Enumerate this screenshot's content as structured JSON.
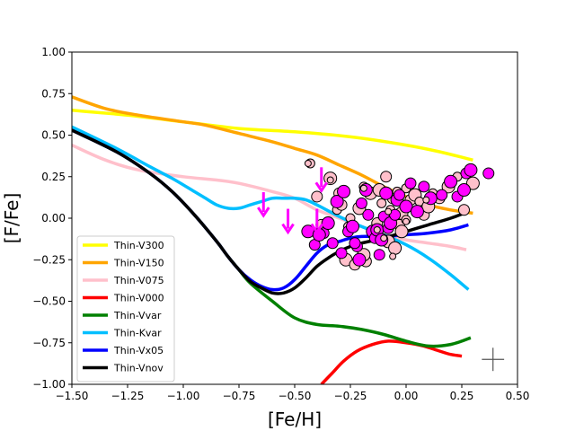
{
  "chart_data": {
    "type": "line",
    "xlabel": "[Fe/H]",
    "ylabel": "[F/Fe]",
    "xlim": [
      -1.5,
      0.5
    ],
    "ylim": [
      -1.0,
      1.0
    ],
    "xticks": [
      -1.5,
      -1.25,
      -1.0,
      -0.75,
      -0.5,
      -0.25,
      0.0,
      0.25,
      0.5
    ],
    "xtick_labels": [
      "−1.50",
      "−1.25",
      "−1.00",
      "−0.75",
      "−0.50",
      "−0.25",
      "0.00",
      "0.25",
      "0.50"
    ],
    "yticks": [
      -1.0,
      -0.75,
      -0.5,
      -0.25,
      0.0,
      0.25,
      0.5,
      0.75,
      1.0
    ],
    "ytick_labels": [
      "−1.00",
      "−0.75",
      "−0.50",
      "−0.25",
      "0.00",
      "0.25",
      "0.50",
      "0.75",
      "1.00"
    ],
    "legend_position": "lower-left",
    "series": [
      {
        "name": "Thin-V300",
        "color": "#ffff00",
        "x": [
          -1.5,
          -1.25,
          -1.0,
          -0.75,
          -0.5,
          -0.25,
          0.0,
          0.15,
          0.3
        ],
        "y": [
          0.65,
          0.62,
          0.58,
          0.54,
          0.52,
          0.49,
          0.44,
          0.4,
          0.35
        ]
      },
      {
        "name": "Thin-V150",
        "color": "#ffa500",
        "x": [
          -1.5,
          -1.35,
          -1.2,
          -1.0,
          -0.9,
          -0.75,
          -0.6,
          -0.5,
          -0.4,
          -0.3,
          -0.2,
          -0.1,
          0.0,
          0.1,
          0.2,
          0.3
        ],
        "y": [
          0.73,
          0.66,
          0.62,
          0.58,
          0.56,
          0.51,
          0.46,
          0.42,
          0.38,
          0.32,
          0.26,
          0.19,
          0.13,
          0.08,
          0.05,
          0.03
        ]
      },
      {
        "name": "Thin-V075",
        "color": "#ffc0cb",
        "x": [
          -1.5,
          -1.35,
          -1.2,
          -1.0,
          -0.85,
          -0.75,
          -0.6,
          -0.5,
          -0.4,
          -0.3,
          -0.2,
          -0.1,
          0.0,
          0.1,
          0.2,
          0.27
        ],
        "y": [
          0.44,
          0.35,
          0.29,
          0.25,
          0.23,
          0.21,
          0.16,
          0.12,
          0.05,
          0.0,
          -0.05,
          -0.1,
          -0.13,
          -0.15,
          -0.17,
          -0.19
        ]
      },
      {
        "name": "Thin-V000",
        "color": "#ff0000",
        "x": [
          -0.38,
          -0.33,
          -0.28,
          -0.22,
          -0.15,
          -0.08,
          0.0,
          0.08,
          0.15,
          0.2,
          0.25
        ],
        "y": [
          -1.0,
          -0.93,
          -0.86,
          -0.8,
          -0.76,
          -0.74,
          -0.75,
          -0.77,
          -0.8,
          -0.82,
          -0.83
        ]
      },
      {
        "name": "Thin-Vvar",
        "color": "#008000",
        "x": [
          -1.5,
          -1.3,
          -1.15,
          -1.05,
          -0.95,
          -0.85,
          -0.8,
          -0.75,
          -0.7,
          -0.6,
          -0.5,
          -0.4,
          -0.3,
          -0.2,
          -0.1,
          0.0,
          0.1,
          0.2,
          0.29
        ],
        "y": [
          0.53,
          0.4,
          0.27,
          0.16,
          0.02,
          -0.14,
          -0.23,
          -0.31,
          -0.39,
          -0.5,
          -0.6,
          -0.64,
          -0.65,
          -0.67,
          -0.7,
          -0.74,
          -0.77,
          -0.76,
          -0.72
        ]
      },
      {
        "name": "Thin-Kvar",
        "color": "#00bfff",
        "x": [
          -1.5,
          -1.3,
          -1.15,
          -1.05,
          -0.95,
          -0.9,
          -0.85,
          -0.8,
          -0.75,
          -0.7,
          -0.65,
          -0.6,
          -0.55,
          -0.5,
          -0.45,
          -0.4,
          -0.3,
          -0.2,
          -0.1,
          0.0,
          0.1,
          0.2,
          0.28
        ],
        "y": [
          0.55,
          0.42,
          0.31,
          0.24,
          0.16,
          0.12,
          0.08,
          0.06,
          0.06,
          0.08,
          0.1,
          0.12,
          0.12,
          0.12,
          0.11,
          0.08,
          0.01,
          -0.05,
          -0.1,
          -0.16,
          -0.24,
          -0.34,
          -0.43
        ]
      },
      {
        "name": "Thin-Vx05",
        "color": "#0000ff",
        "x": [
          -1.5,
          -1.3,
          -1.15,
          -1.05,
          -0.95,
          -0.85,
          -0.8,
          -0.75,
          -0.7,
          -0.65,
          -0.6,
          -0.55,
          -0.5,
          -0.45,
          -0.4,
          -0.35,
          -0.3,
          -0.25,
          -0.2,
          -0.1,
          0.0,
          0.1,
          0.2,
          0.28
        ],
        "y": [
          0.53,
          0.4,
          0.27,
          0.16,
          0.02,
          -0.14,
          -0.23,
          -0.31,
          -0.37,
          -0.41,
          -0.43,
          -0.42,
          -0.37,
          -0.29,
          -0.21,
          -0.16,
          -0.14,
          -0.12,
          -0.11,
          -0.11,
          -0.1,
          -0.09,
          -0.07,
          -0.04
        ]
      },
      {
        "name": "Thin-Vnov",
        "color": "#000000",
        "x": [
          -1.5,
          -1.3,
          -1.15,
          -1.05,
          -0.95,
          -0.85,
          -0.8,
          -0.75,
          -0.7,
          -0.65,
          -0.6,
          -0.55,
          -0.5,
          -0.45,
          -0.4,
          -0.35,
          -0.3,
          -0.25,
          -0.2,
          -0.1,
          0.0,
          0.1,
          0.2,
          0.28
        ],
        "y": [
          0.53,
          0.4,
          0.27,
          0.16,
          0.02,
          -0.14,
          -0.23,
          -0.31,
          -0.38,
          -0.42,
          -0.45,
          -0.45,
          -0.42,
          -0.36,
          -0.29,
          -0.24,
          -0.2,
          -0.17,
          -0.15,
          -0.12,
          -0.08,
          -0.04,
          0.0,
          0.04
        ]
      }
    ],
    "pink_stars": [
      [
        -0.43,
        0.33
      ],
      [
        -0.4,
        0.13
      ],
      [
        -0.34,
        0.24
      ],
      [
        -0.31,
        0.05
      ],
      [
        -0.29,
        0.08
      ],
      [
        -0.27,
        -0.25
      ],
      [
        -0.25,
        0.0
      ],
      [
        -0.23,
        -0.28
      ],
      [
        -0.21,
        0.06
      ],
      [
        -0.19,
        0.19
      ],
      [
        -0.18,
        -0.26
      ],
      [
        -0.16,
        0.15
      ],
      [
        -0.15,
        -0.1
      ],
      [
        -0.13,
        -0.03
      ],
      [
        -0.12,
        0.17
      ],
      [
        -0.11,
        0.09
      ],
      [
        -0.09,
        0.25
      ],
      [
        -0.08,
        -0.14
      ],
      [
        -0.07,
        0.05
      ],
      [
        -0.06,
        0.12
      ],
      [
        -0.05,
        -0.18
      ],
      [
        -0.04,
        0.16
      ],
      [
        -0.03,
        -0.04
      ],
      [
        -0.02,
        0.03
      ],
      [
        0.0,
        -0.01
      ],
      [
        0.02,
        0.11
      ],
      [
        0.04,
        0.14
      ],
      [
        0.06,
        0.1
      ],
      [
        0.08,
        0.02
      ],
      [
        0.1,
        0.07
      ],
      [
        0.12,
        0.15
      ],
      [
        0.15,
        0.12
      ],
      [
        0.19,
        0.19
      ],
      [
        0.23,
        0.25
      ],
      [
        0.26,
        0.05
      ],
      [
        0.3,
        0.21
      ],
      [
        -0.26,
        -0.05
      ],
      [
        -0.3,
        0.15
      ],
      [
        -0.02,
        -0.08
      ],
      [
        0.0,
        0.18
      ],
      [
        -0.38,
        -0.04
      ],
      [
        -0.19,
        -0.22
      ]
    ],
    "magenta_stars": [
      [
        -0.37,
        -0.09
      ],
      [
        -0.35,
        -0.03
      ],
      [
        -0.41,
        -0.16
      ],
      [
        -0.44,
        -0.08
      ],
      [
        -0.33,
        -0.15
      ],
      [
        -0.31,
        0.1
      ],
      [
        -0.29,
        -0.21
      ],
      [
        -0.28,
        0.16
      ],
      [
        -0.26,
        -0.08
      ],
      [
        -0.24,
        -0.05
      ],
      [
        -0.22,
        -0.17
      ],
      [
        -0.21,
        -0.25
      ],
      [
        -0.2,
        0.09
      ],
      [
        -0.18,
        0.17
      ],
      [
        -0.17,
        0.02
      ],
      [
        -0.15,
        -0.08
      ],
      [
        -0.14,
        -0.12
      ],
      [
        -0.13,
        -0.07
      ],
      [
        -0.12,
        -0.22
      ],
      [
        -0.11,
        -0.13
      ],
      [
        -0.1,
        0.01
      ],
      [
        -0.09,
        0.15
      ],
      [
        -0.08,
        -0.06
      ],
      [
        -0.07,
        -0.03
      ],
      [
        -0.05,
        0.02
      ],
      [
        -0.04,
        0.11
      ],
      [
        -0.03,
        0.14
      ],
      [
        0.0,
        0.07
      ],
      [
        0.02,
        0.21
      ],
      [
        0.05,
        0.04
      ],
      [
        0.08,
        0.19
      ],
      [
        0.11,
        0.12
      ],
      [
        0.16,
        0.14
      ],
      [
        0.2,
        0.22
      ],
      [
        0.23,
        0.13
      ],
      [
        0.26,
        0.17
      ],
      [
        0.27,
        0.27
      ],
      [
        0.29,
        0.29
      ],
      [
        0.37,
        0.27
      ],
      [
        -0.39,
        -0.1
      ],
      [
        -0.23,
        -0.15
      ]
    ],
    "small_markers": [
      [
        -0.44,
        0.33
      ],
      [
        -0.34,
        0.23
      ],
      [
        -0.19,
        0.18
      ],
      [
        -0.1,
        -0.12
      ],
      [
        0.0,
        -0.02
      ],
      [
        -0.06,
        -0.23
      ],
      [
        -0.08,
        0.04
      ],
      [
        -0.13,
        -0.07
      ],
      [
        0.09,
        0.11
      ]
    ],
    "upper_limits": [
      [
        -0.38,
        0.22
      ],
      [
        -0.64,
        0.07
      ],
      [
        -0.53,
        -0.03
      ],
      [
        -0.4,
        -0.03
      ]
    ],
    "error_bar": {
      "x": 0.39,
      "y": -0.85,
      "dx": 0.05,
      "dy": 0.07
    }
  }
}
